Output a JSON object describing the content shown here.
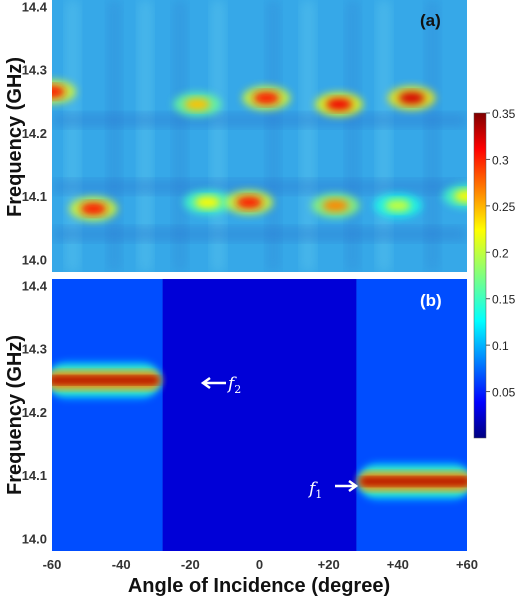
{
  "chart_data": [
    {
      "type": "heatmap",
      "panel_label": "(a)",
      "xlabel": "",
      "ylabel": "Frequency (GHz)",
      "ylim": [
        13.98,
        14.41
      ],
      "xlim": [
        -60,
        60
      ],
      "y_ticks": [
        "14.4",
        "14.3",
        "14.2",
        "14.1",
        "14.0"
      ],
      "background_value": 0.12,
      "hotspots": [
        {
          "x": -60,
          "y": 14.265,
          "value": 0.3
        },
        {
          "x": -48,
          "y": 14.08,
          "value": 0.3
        },
        {
          "x": -18,
          "y": 14.245,
          "value": 0.24
        },
        {
          "x": -15,
          "y": 14.09,
          "value": 0.22
        },
        {
          "x": -3,
          "y": 14.09,
          "value": 0.3
        },
        {
          "x": 2,
          "y": 14.255,
          "value": 0.3
        },
        {
          "x": 23,
          "y": 14.245,
          "value": 0.31
        },
        {
          "x": 22,
          "y": 14.085,
          "value": 0.26
        },
        {
          "x": 44,
          "y": 14.255,
          "value": 0.32
        },
        {
          "x": 40,
          "y": 14.085,
          "value": 0.2
        },
        {
          "x": 60,
          "y": 14.1,
          "value": 0.22
        }
      ],
      "color_scale": "jet"
    },
    {
      "type": "heatmap",
      "panel_label": "(b)",
      "xlabel": "Angle of Incidence (degree)",
      "ylabel": "Frequency (GHz)",
      "ylim": [
        13.98,
        14.41
      ],
      "xlim": [
        -60,
        60
      ],
      "x_ticks": [
        "-60",
        "-40",
        "-20",
        "0",
        "+20",
        "+40",
        "+60"
      ],
      "y_ticks": [
        "14.4",
        "14.3",
        "14.2",
        "14.1",
        "14.0"
      ],
      "bands": [
        {
          "name": "f2",
          "x_range": [
            -60,
            -30
          ],
          "y": 14.25,
          "value": 0.34
        },
        {
          "name": "f1",
          "x_range": [
            30,
            60
          ],
          "y": 14.09,
          "value": 0.34
        }
      ],
      "side_region_value": 0.07,
      "center_region_value": 0.03,
      "annotations": [
        {
          "main": "f",
          "sub": "2",
          "arrow": "left"
        },
        {
          "main": "f",
          "sub": "1",
          "arrow": "right"
        }
      ],
      "color_scale": "jet"
    }
  ],
  "colorbar": {
    "min": 0,
    "max": 0.35,
    "ticks": [
      "0.35",
      "0.3",
      "0.25",
      "0.2",
      "0.15",
      "0.1",
      "0.05"
    ],
    "tick_values": [
      0.35,
      0.3,
      0.25,
      0.2,
      0.15,
      0.1,
      0.05
    ]
  }
}
